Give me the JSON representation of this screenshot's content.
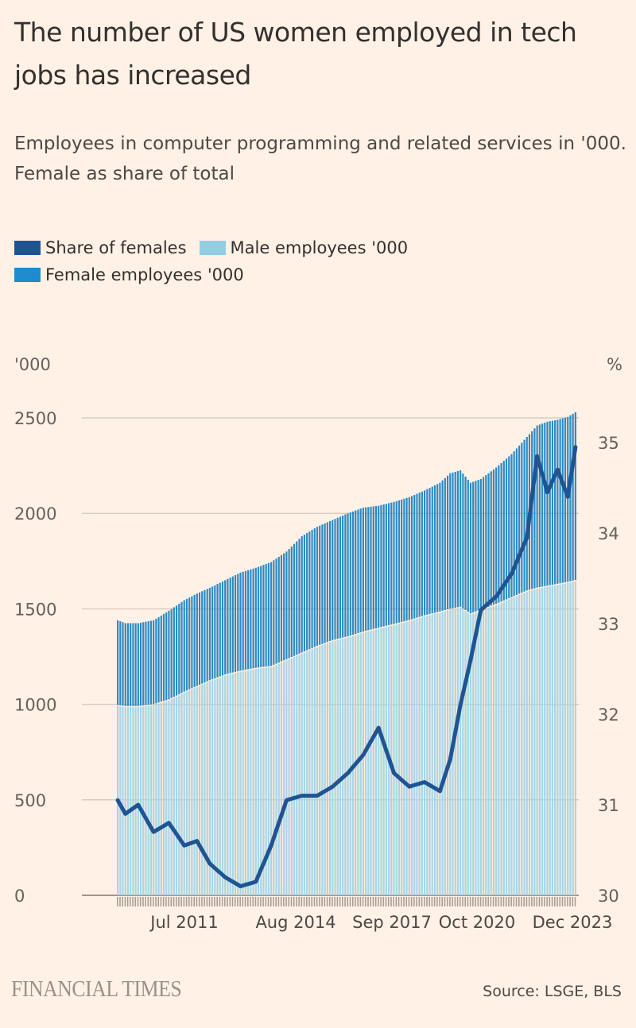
{
  "title": "The number of US women employed in tech jobs has increased",
  "subtitle": "Employees in computer programming and related services in '000. Female as share of total",
  "legend": [
    {
      "label": "Share of females",
      "color": "#1f5493"
    },
    {
      "label": "Male employees '000",
      "color": "#93cde3"
    },
    {
      "label": "Female employees '000",
      "color": "#1e8bcd"
    }
  ],
  "left_unit": "'000",
  "right_unit": "%",
  "footer": {
    "logo": "FINANCIAL TIMES",
    "source": "Source: LSGE, BLS"
  },
  "chart_data": {
    "type": "bar",
    "stacked": true,
    "frequency": "monthly",
    "start": "Jan 2009",
    "end": "Dec 2023",
    "title": "The number of US women employed in tech jobs has increased",
    "ylabel_left": "'000",
    "ylabel_right": "%",
    "ylim_left": [
      0,
      2500
    ],
    "ylim_right": [
      30,
      35
    ],
    "yticks_left": [
      0,
      500,
      1000,
      1500,
      2000,
      2500
    ],
    "yticks_right": [
      30,
      31,
      32,
      33,
      34,
      35
    ],
    "xtick_labels": [
      "Jul 2011",
      "Aug 2014",
      "Sep 2017",
      "Oct 2020",
      "Dec 2023"
    ],
    "grid": true,
    "legend_position": "top-left",
    "anchors": {
      "month_index": [
        0,
        3,
        8,
        14,
        20,
        26,
        31,
        36,
        42,
        48,
        54,
        60,
        66,
        72,
        78,
        84,
        90,
        96,
        102,
        108,
        114,
        120,
        126,
        130,
        134,
        138,
        142,
        148,
        154,
        160,
        164,
        168,
        172,
        176,
        179
      ],
      "total": [
        1440,
        1425,
        1425,
        1440,
        1490,
        1545,
        1580,
        1610,
        1650,
        1690,
        1715,
        1745,
        1800,
        1880,
        1930,
        1965,
        2000,
        2030,
        2040,
        2060,
        2085,
        2120,
        2160,
        2210,
        2225,
        2160,
        2180,
        2240,
        2310,
        2400,
        2460,
        2480,
        2490,
        2505,
        2530
      ],
      "male": [
        990,
        985,
        985,
        995,
        1020,
        1060,
        1090,
        1120,
        1150,
        1170,
        1185,
        1195,
        1230,
        1265,
        1300,
        1330,
        1350,
        1375,
        1395,
        1415,
        1435,
        1460,
        1480,
        1495,
        1505,
        1470,
        1490,
        1520,
        1555,
        1590,
        1605,
        1615,
        1625,
        1635,
        1645
      ],
      "share": [
        31.05,
        30.9,
        31.0,
        30.7,
        30.8,
        30.55,
        30.6,
        30.35,
        30.2,
        30.1,
        30.15,
        30.55,
        31.05,
        31.1,
        31.1,
        31.2,
        31.35,
        31.55,
        31.85,
        31.35,
        31.2,
        31.25,
        31.15,
        31.5,
        32.1,
        32.6,
        33.15,
        33.3,
        33.55,
        33.95,
        34.85,
        34.45,
        34.7,
        34.4,
        34.95
      ]
    }
  }
}
